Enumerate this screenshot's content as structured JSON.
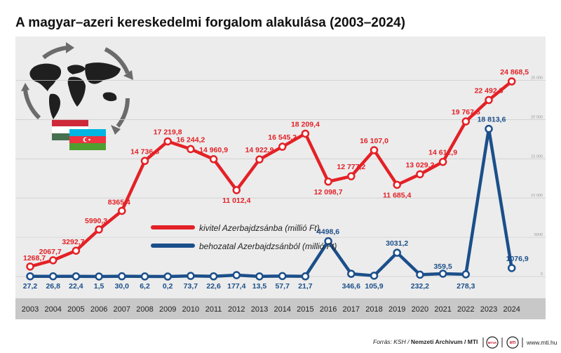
{
  "chart_data": {
    "type": "line",
    "title": "A magyar–azeri kereskedelmi forgalom alakulása (2003–2024)",
    "categories": [
      "2003",
      "2004",
      "2005",
      "2006",
      "2007",
      "2008",
      "2009",
      "2010",
      "2011",
      "2012",
      "2013",
      "2014",
      "2015",
      "2016",
      "2017",
      "2018",
      "2019",
      "2020",
      "2021",
      "2022",
      "2023",
      "2024"
    ],
    "series": [
      {
        "name": "kivitel Azerbajdzsánba (millió Ft)",
        "color": "#e32126",
        "values": [
          1268.7,
          2067.7,
          3292.7,
          5990.3,
          8365.4,
          14736.8,
          17219.8,
          16244.2,
          14960.9,
          11012.4,
          14922.9,
          16545.2,
          18209.4,
          12098.7,
          12777.2,
          16107.0,
          11685.4,
          13029.2,
          14612.9,
          19767.5,
          22492.5,
          24868.5
        ],
        "labels": [
          "1268,7",
          "2067,7",
          "3292,7",
          "5990,3",
          "8365,4",
          "14 736,8",
          "17 219,8",
          "16 244,2",
          "14 960,9",
          "11 012,4",
          "14 922,9",
          "16 545,2",
          "18 209,4",
          "12 098,7",
          "12 777,2",
          "16 107,0",
          "11 685,4",
          "13 029,2",
          "14 612,9",
          "19 767,5",
          "22 492,5",
          "24 868,5"
        ]
      },
      {
        "name": "behozatal Azerbajdzsánból (millió Ft)",
        "color": "#1b4f8a",
        "values": [
          27.2,
          26.8,
          22.4,
          1.5,
          30.0,
          6.2,
          0.2,
          73.7,
          22.6,
          177.4,
          13.5,
          57.7,
          21.7,
          4498.6,
          346.6,
          105.9,
          3031.2,
          232.2,
          359.5,
          278.3,
          18813.6,
          1076.9
        ],
        "labels": [
          "27,2",
          "26,8",
          "22,4",
          "1,5",
          "30,0",
          "6,2",
          "0,2",
          "73,7",
          "22,6",
          "177,4",
          "13,5",
          "57,7",
          "21,7",
          "4498,6",
          "346,6",
          "105,9",
          "3031,2",
          "232,2",
          "359,5",
          "278,3",
          "18 813,6",
          "1076,9"
        ]
      }
    ],
    "ylim": [
      0,
      27000
    ],
    "yticks": [
      0,
      5000,
      10000,
      15000,
      20000,
      25000
    ],
    "ytick_labels": [
      "0",
      "5000",
      "10 000",
      "15 000",
      "20 000",
      "25 000"
    ],
    "grid": true,
    "legend_position": "center-left"
  },
  "footer": {
    "source_prefix": "Forrás: KSH / ",
    "source_bold": "Nemzeti Archívum / MTI",
    "url": "www.mti.hu",
    "logo1_text": "MTVA",
    "logo2_text": "MTI"
  },
  "colors": {
    "plot_bg": "#ececec",
    "axis_band": "#c8c8c8",
    "map": "#1f1f1f",
    "arrows": "#6b6b6b"
  }
}
